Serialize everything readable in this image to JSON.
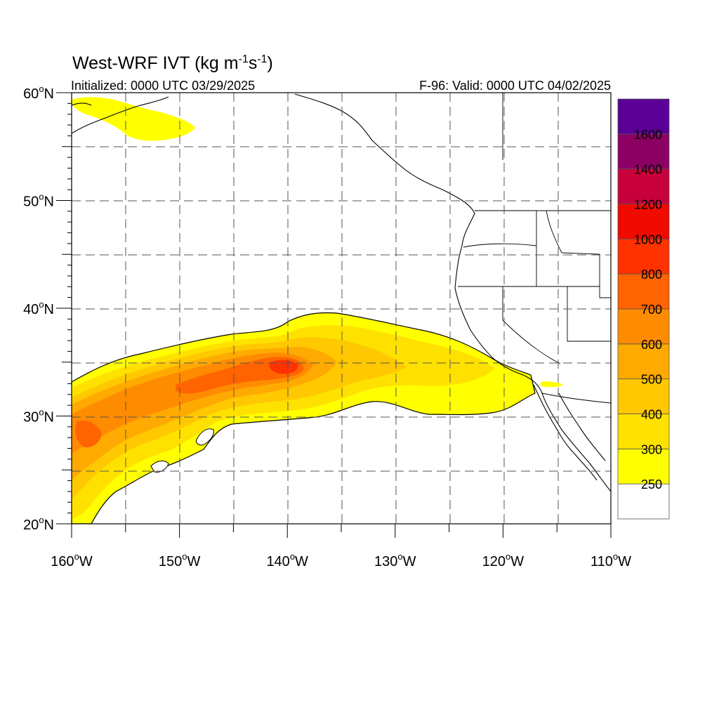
{
  "title_main": "West-WRF IVT (kg m",
  "title_sup1": "-1",
  "title_mid": "s",
  "title_sup2": "-1",
  "title_end": ")",
  "initialized": "Initialized: 0000 UTC 03/29/2025",
  "valid": "F-96: Valid: 0000 UTC 04/02/2025",
  "x_ticks": [
    {
      "lon": -160,
      "label": "160",
      "hemi": "W"
    },
    {
      "lon": -150,
      "label": "150",
      "hemi": "W"
    },
    {
      "lon": -140,
      "label": "140",
      "hemi": "W"
    },
    {
      "lon": -130,
      "label": "130",
      "hemi": "W"
    },
    {
      "lon": -120,
      "label": "120",
      "hemi": "W"
    },
    {
      "lon": -110,
      "label": "110",
      "hemi": "W"
    }
  ],
  "y_ticks": [
    {
      "lat": 60,
      "label": "60",
      "hemi": "N"
    },
    {
      "lat": 50,
      "label": "50",
      "hemi": "N"
    },
    {
      "lat": 40,
      "label": "40",
      "hemi": "N"
    },
    {
      "lat": 30,
      "label": "30",
      "hemi": "N"
    },
    {
      "lat": 20,
      "label": "20",
      "hemi": "N"
    }
  ],
  "map_extent": {
    "lon": [
      -160,
      -110
    ],
    "lat": [
      20,
      60
    ]
  },
  "colorbar": {
    "levels": [
      "250",
      "300",
      "400",
      "500",
      "600",
      "700",
      "800",
      "1000",
      "1200",
      "1400",
      "1600"
    ],
    "colors": [
      "#ffffff",
      "#ffff00",
      "#ffe100",
      "#ffc800",
      "#ffaa00",
      "#ff8c00",
      "#ff6400",
      "#ff3200",
      "#f00a00",
      "#c8003c",
      "#8c0064",
      "#5a0096"
    ]
  }
}
